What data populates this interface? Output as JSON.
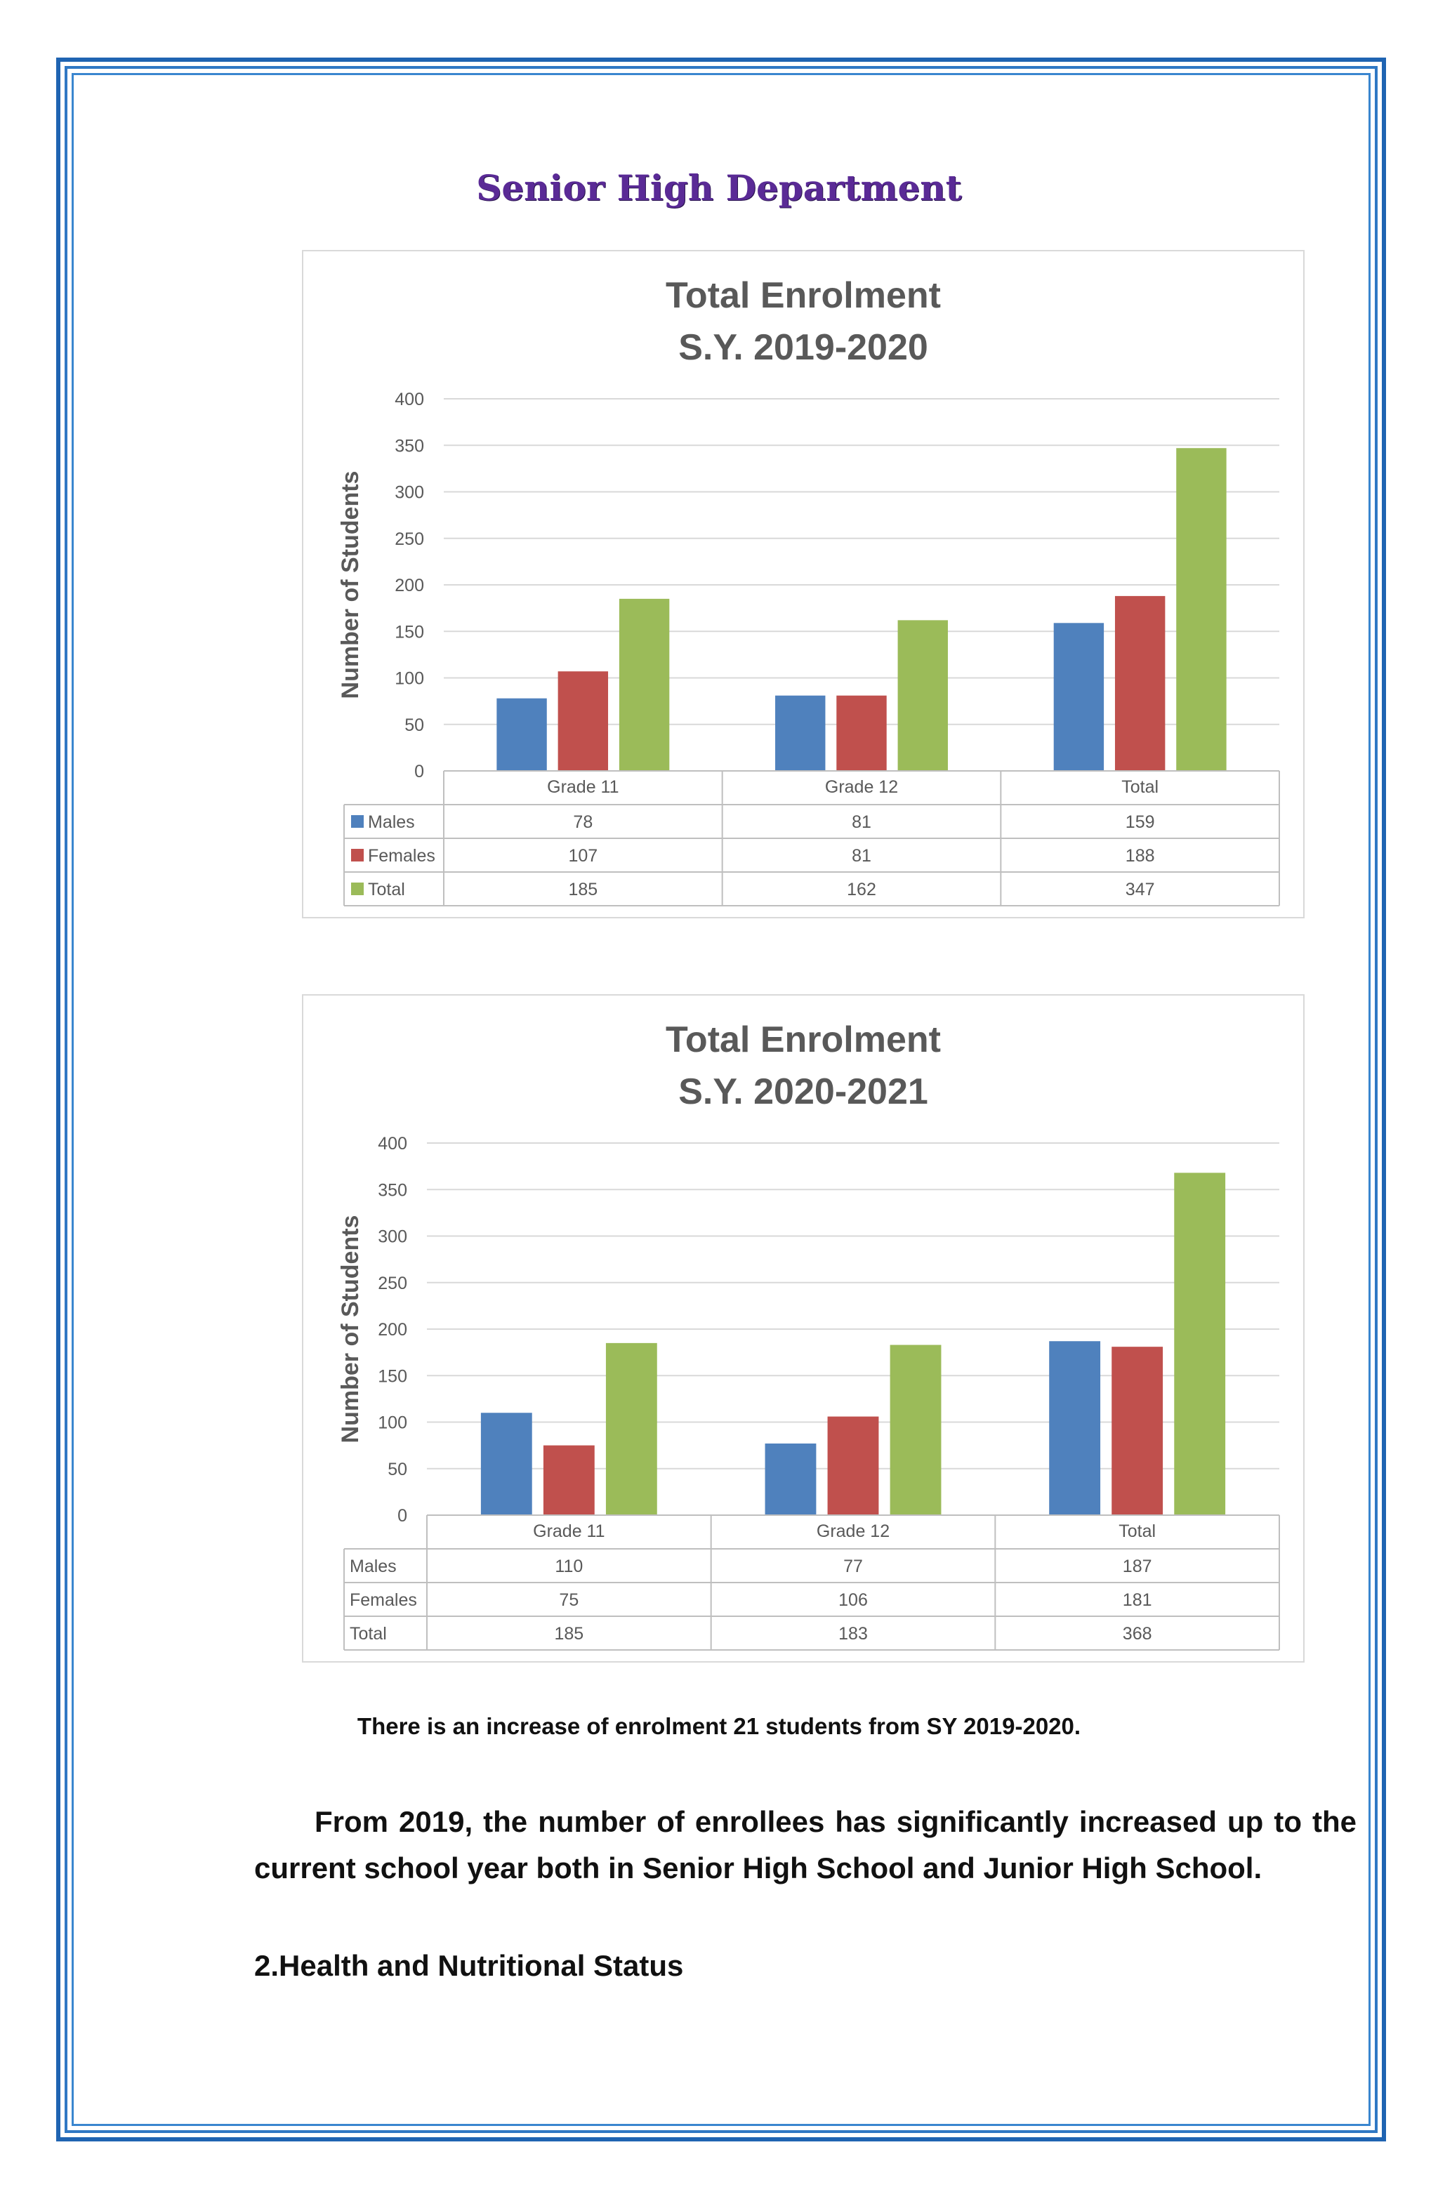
{
  "page": {
    "heading": "Senior High Department",
    "note": "There is an increase of enrolment 21 students from SY 2019-2020.",
    "paragraph": "From 2019, the number of enrollees has significantly increased up to the current school year both in Senior High School and Junior High School.",
    "section_title": "2.Health and Nutritional Status"
  },
  "chart_data": [
    {
      "type": "bar",
      "title": [
        "Total Enrolment",
        "S.Y. 2019-2020"
      ],
      "ylabel": "Number of Students",
      "ylim": [
        0,
        400
      ],
      "yticks": [
        0,
        50,
        100,
        150,
        200,
        250,
        300,
        350,
        400
      ],
      "categories": [
        "Grade 11",
        "Grade 12",
        "Total"
      ],
      "grid": true,
      "legend_keys_in_table": true,
      "series": [
        {
          "name": "Males",
          "color": "#4f81bd",
          "values": [
            78,
            81,
            159
          ]
        },
        {
          "name": "Females",
          "color": "#c0504d",
          "values": [
            107,
            81,
            188
          ]
        },
        {
          "name": "Total",
          "color": "#9bbb59",
          "values": [
            185,
            162,
            347
          ]
        }
      ]
    },
    {
      "type": "bar",
      "title": [
        "Total Enrolment",
        "S.Y. 2020-2021"
      ],
      "ylabel": "Number of Students",
      "ylim": [
        0,
        400
      ],
      "yticks": [
        0,
        50,
        100,
        150,
        200,
        250,
        300,
        350,
        400
      ],
      "categories": [
        "Grade 11",
        "Grade 12",
        "Total"
      ],
      "grid": true,
      "legend_keys_in_table": false,
      "series": [
        {
          "name": "Males",
          "color": "#4f81bd",
          "values": [
            110,
            77,
            187
          ]
        },
        {
          "name": "Females",
          "color": "#c0504d",
          "values": [
            75,
            106,
            181
          ]
        },
        {
          "name": "Total",
          "color": "#9bbb59",
          "values": [
            185,
            183,
            368
          ]
        }
      ]
    }
  ]
}
